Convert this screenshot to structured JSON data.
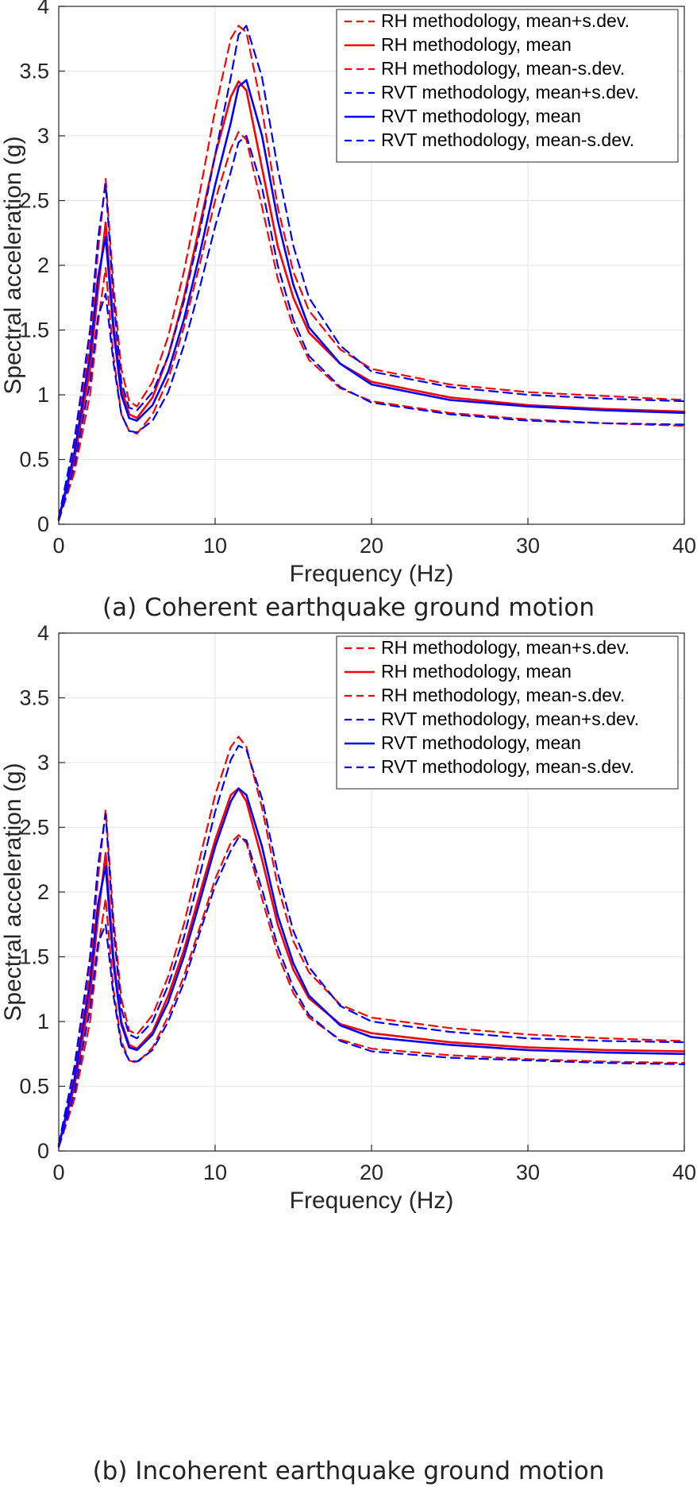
{
  "colors": {
    "rh": "#ff0000",
    "rvt": "#0000ff",
    "axis": "#262626",
    "grid": "#e6e6e6"
  },
  "chart_data": [
    {
      "type": "line",
      "caption": "(a) Coherent earthquake ground motion",
      "xlabel": "Frequency (Hz)",
      "ylabel": "Spectral acceleration (g)",
      "xlim": [
        0,
        40
      ],
      "ylim": [
        0,
        4
      ],
      "xticks": [
        "0",
        "10",
        "20",
        "30",
        "40"
      ],
      "yticks": [
        "0",
        "0.5",
        "1",
        "1.5",
        "2",
        "2.5",
        "3",
        "3.5",
        "4"
      ],
      "grid": true,
      "legend_position": "top-right",
      "series": [
        {
          "name": "RH methodology, mean+s.dev.",
          "color": "#ff0000",
          "style": "dashed",
          "x": [
            0,
            1,
            2,
            2.5,
            3,
            3.5,
            4,
            4.5,
            5,
            6,
            7,
            8,
            9,
            10,
            11,
            11.5,
            12,
            13,
            14,
            15,
            16,
            18,
            20,
            25,
            30,
            35,
            40
          ],
          "y": [
            0.05,
            0.6,
            1.4,
            2.1,
            2.67,
            1.85,
            1.2,
            0.95,
            0.91,
            1.1,
            1.45,
            1.95,
            2.55,
            3.2,
            3.75,
            3.85,
            3.8,
            3.2,
            2.45,
            1.95,
            1.65,
            1.35,
            1.2,
            1.08,
            1.02,
            0.99,
            0.96
          ]
        },
        {
          "name": "RH methodology, mean",
          "color": "#ff0000",
          "style": "solid",
          "x": [
            0,
            1,
            2,
            2.5,
            3,
            3.5,
            4,
            4.5,
            5,
            6,
            7,
            8,
            9,
            10,
            11,
            11.5,
            12,
            13,
            14,
            15,
            16,
            18,
            20,
            25,
            30,
            35,
            40
          ],
          "y": [
            0.04,
            0.5,
            1.2,
            1.8,
            2.33,
            1.55,
            1.05,
            0.85,
            0.82,
            0.98,
            1.3,
            1.75,
            2.3,
            2.85,
            3.3,
            3.42,
            3.35,
            2.75,
            2.15,
            1.75,
            1.48,
            1.24,
            1.1,
            0.98,
            0.92,
            0.89,
            0.87
          ]
        },
        {
          "name": "RH methodology, mean-s.dev.",
          "color": "#ff0000",
          "style": "dashed",
          "x": [
            0,
            1,
            2,
            2.5,
            3,
            3.5,
            4,
            4.5,
            5,
            6,
            7,
            8,
            9,
            10,
            11,
            11.5,
            12,
            13,
            14,
            15,
            16,
            18,
            20,
            25,
            30,
            35,
            40
          ],
          "y": [
            0.03,
            0.4,
            1.0,
            1.55,
            1.98,
            1.3,
            0.85,
            0.72,
            0.7,
            0.85,
            1.12,
            1.52,
            2.0,
            2.5,
            2.9,
            3.03,
            2.97,
            2.45,
            1.9,
            1.52,
            1.27,
            1.05,
            0.95,
            0.86,
            0.81,
            0.78,
            0.76
          ]
        },
        {
          "name": "RVT methodology, mean+s.dev.",
          "color": "#0000ff",
          "style": "dashed",
          "x": [
            0,
            1,
            2,
            2.5,
            3,
            3.5,
            4,
            4.5,
            5,
            6,
            7,
            8,
            9,
            10,
            11,
            11.5,
            12,
            13,
            14,
            15,
            16,
            18,
            20,
            25,
            30,
            35,
            40
          ],
          "y": [
            0.05,
            0.65,
            1.5,
            2.2,
            2.63,
            1.75,
            1.1,
            0.9,
            0.88,
            1.02,
            1.3,
            1.72,
            2.25,
            2.85,
            3.45,
            3.78,
            3.85,
            3.45,
            2.75,
            2.15,
            1.75,
            1.38,
            1.18,
            1.06,
            1.0,
            0.97,
            0.95
          ]
        },
        {
          "name": "RVT methodology, mean",
          "color": "#0000ff",
          "style": "solid",
          "x": [
            0,
            1,
            2,
            2.5,
            3,
            3.5,
            4,
            4.5,
            5,
            6,
            7,
            8,
            9,
            10,
            11,
            11.5,
            12,
            13,
            14,
            15,
            16,
            18,
            20,
            25,
            30,
            35,
            40
          ],
          "y": [
            0.04,
            0.55,
            1.3,
            1.9,
            2.22,
            1.5,
            1.0,
            0.82,
            0.8,
            0.92,
            1.18,
            1.58,
            2.08,
            2.62,
            3.1,
            3.38,
            3.43,
            3.0,
            2.35,
            1.85,
            1.52,
            1.24,
            1.08,
            0.96,
            0.91,
            0.88,
            0.86
          ]
        },
        {
          "name": "RVT methodology, mean-s.dev.",
          "color": "#0000ff",
          "style": "dashed",
          "x": [
            0,
            1,
            2,
            2.5,
            3,
            3.5,
            4,
            4.5,
            5,
            6,
            7,
            8,
            9,
            10,
            11,
            11.5,
            12,
            13,
            14,
            15,
            16,
            18,
            20,
            25,
            30,
            35,
            40
          ],
          "y": [
            0.03,
            0.45,
            1.1,
            1.6,
            1.78,
            1.25,
            0.85,
            0.72,
            0.71,
            0.8,
            1.02,
            1.38,
            1.82,
            2.3,
            2.72,
            2.95,
            3.0,
            2.6,
            2.0,
            1.58,
            1.3,
            1.06,
            0.94,
            0.85,
            0.8,
            0.78,
            0.77
          ]
        }
      ]
    },
    {
      "type": "line",
      "caption": "(b) Incoherent earthquake ground motion",
      "xlabel": "Frequency (Hz)",
      "ylabel": "Spectral acceleration (g)",
      "xlim": [
        0,
        40
      ],
      "ylim": [
        0,
        4
      ],
      "xticks": [
        "0",
        "10",
        "20",
        "30",
        "40"
      ],
      "yticks": [
        "0",
        "0.5",
        "1",
        "1.5",
        "2",
        "2.5",
        "3",
        "3.5",
        "4"
      ],
      "grid": true,
      "legend_position": "top-right",
      "series": [
        {
          "name": "RH methodology, mean+s.dev.",
          "color": "#ff0000",
          "style": "dashed",
          "x": [
            0,
            1,
            2,
            2.5,
            3,
            3.5,
            4,
            4.5,
            5,
            6,
            7,
            8,
            9,
            10,
            11,
            11.5,
            12,
            13,
            14,
            15,
            16,
            18,
            20,
            25,
            30,
            35,
            40
          ],
          "y": [
            0.05,
            0.6,
            1.4,
            2.1,
            2.64,
            1.8,
            1.18,
            0.93,
            0.9,
            1.05,
            1.35,
            1.75,
            2.25,
            2.75,
            3.12,
            3.2,
            3.12,
            2.65,
            2.05,
            1.62,
            1.38,
            1.13,
            1.03,
            0.95,
            0.9,
            0.87,
            0.85
          ]
        },
        {
          "name": "RH methodology, mean",
          "color": "#ff0000",
          "style": "solid",
          "x": [
            0,
            1,
            2,
            2.5,
            3,
            3.5,
            4,
            4.5,
            5,
            6,
            7,
            8,
            9,
            10,
            11,
            11.5,
            12,
            13,
            14,
            15,
            16,
            18,
            20,
            25,
            30,
            35,
            40
          ],
          "y": [
            0.04,
            0.5,
            1.2,
            1.8,
            2.3,
            1.5,
            1.0,
            0.82,
            0.79,
            0.92,
            1.2,
            1.55,
            1.98,
            2.4,
            2.75,
            2.8,
            2.7,
            2.25,
            1.75,
            1.4,
            1.18,
            0.98,
            0.91,
            0.84,
            0.8,
            0.78,
            0.77
          ]
        },
        {
          "name": "RH methodology, mean-s.dev.",
          "color": "#ff0000",
          "style": "dashed",
          "x": [
            0,
            1,
            2,
            2.5,
            3,
            3.5,
            4,
            4.5,
            5,
            6,
            7,
            8,
            9,
            10,
            11,
            11.5,
            12,
            13,
            14,
            15,
            16,
            18,
            20,
            25,
            30,
            35,
            40
          ],
          "y": [
            0.03,
            0.4,
            1.0,
            1.55,
            1.95,
            1.25,
            0.85,
            0.7,
            0.68,
            0.8,
            1.04,
            1.35,
            1.72,
            2.1,
            2.38,
            2.44,
            2.38,
            1.95,
            1.52,
            1.22,
            1.03,
            0.86,
            0.79,
            0.74,
            0.71,
            0.69,
            0.68
          ]
        },
        {
          "name": "RVT methodology, mean+s.dev.",
          "color": "#0000ff",
          "style": "dashed",
          "x": [
            0,
            1,
            2,
            2.5,
            3,
            3.5,
            4,
            4.5,
            5,
            6,
            7,
            8,
            9,
            10,
            11,
            11.5,
            12,
            13,
            14,
            15,
            16,
            18,
            20,
            25,
            30,
            35,
            40
          ],
          "y": [
            0.05,
            0.65,
            1.5,
            2.2,
            2.6,
            1.72,
            1.1,
            0.9,
            0.87,
            1.0,
            1.28,
            1.65,
            2.12,
            2.62,
            3.02,
            3.13,
            3.1,
            2.72,
            2.15,
            1.7,
            1.42,
            1.12,
            1.0,
            0.92,
            0.87,
            0.85,
            0.84
          ]
        },
        {
          "name": "RVT methodology, mean",
          "color": "#0000ff",
          "style": "solid",
          "x": [
            0,
            1,
            2,
            2.5,
            3,
            3.5,
            4,
            4.5,
            5,
            6,
            7,
            8,
            9,
            10,
            11,
            11.5,
            12,
            13,
            14,
            15,
            16,
            18,
            20,
            25,
            30,
            35,
            40
          ],
          "y": [
            0.04,
            0.55,
            1.3,
            1.9,
            2.2,
            1.45,
            0.98,
            0.8,
            0.78,
            0.9,
            1.15,
            1.5,
            1.92,
            2.35,
            2.7,
            2.8,
            2.75,
            2.35,
            1.82,
            1.45,
            1.2,
            0.97,
            0.88,
            0.82,
            0.78,
            0.76,
            0.75
          ]
        },
        {
          "name": "RVT methodology, mean-s.dev.",
          "color": "#0000ff",
          "style": "dashed",
          "x": [
            0,
            1,
            2,
            2.5,
            3,
            3.5,
            4,
            4.5,
            5,
            6,
            7,
            8,
            9,
            10,
            11,
            11.5,
            12,
            13,
            14,
            15,
            16,
            18,
            20,
            25,
            30,
            35,
            40
          ],
          "y": [
            0.03,
            0.45,
            1.1,
            1.6,
            1.75,
            1.2,
            0.82,
            0.7,
            0.69,
            0.78,
            1.0,
            1.3,
            1.68,
            2.05,
            2.32,
            2.42,
            2.4,
            2.02,
            1.58,
            1.26,
            1.05,
            0.85,
            0.77,
            0.72,
            0.7,
            0.68,
            0.67
          ]
        }
      ]
    }
  ]
}
